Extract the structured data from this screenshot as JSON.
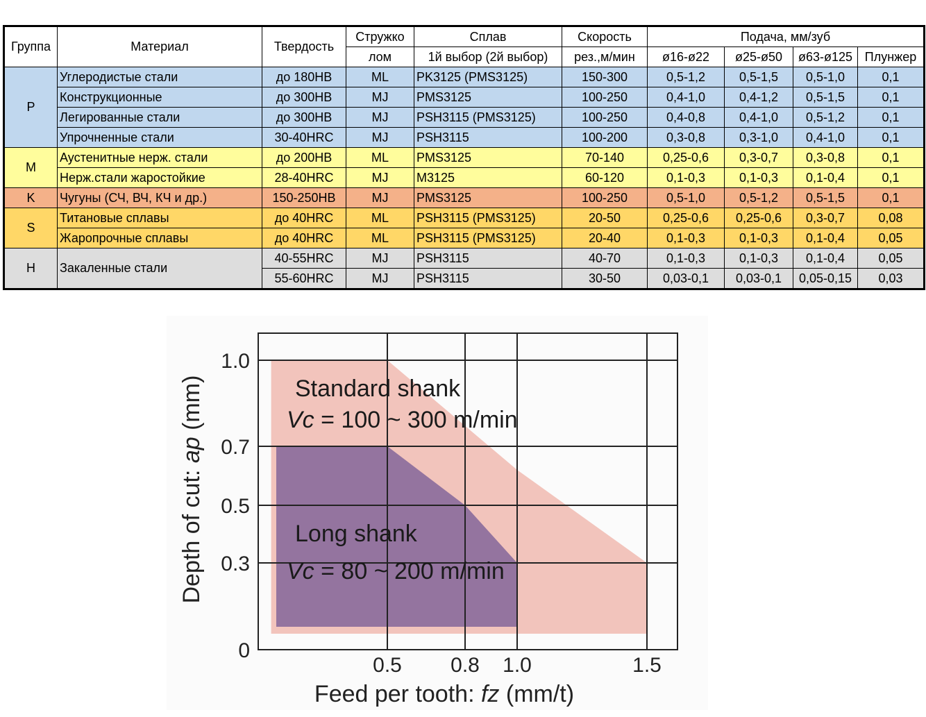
{
  "table": {
    "headers": {
      "group": "Группа",
      "material": "Материал",
      "hardness": "Твердость",
      "chip_l1": "Стружко",
      "chip_l2": "лом",
      "alloy_l1": "Сплав",
      "alloy_l2": "1й выбор (2й выбор)",
      "speed_l1": "Скорость",
      "speed_l2": "рез.,м/мин",
      "feed": "Подача, мм/зуб",
      "d1": "ø16-ø22",
      "d2": "ø25-ø50",
      "d3": "ø63-ø125",
      "d4": "Плунжер"
    },
    "groups": [
      {
        "name": "P",
        "rows": [
          {
            "material": "Углеродистые стали",
            "hardness": "до 180HB",
            "chip": "ML",
            "alloy": "PK3125 (PMS3125)",
            "speed": "150-300",
            "f1": "0,5-1,2",
            "f2": "0,5-1,5",
            "f3": "0,5-1,0",
            "f4": "0,1"
          },
          {
            "material": "Конструкционные",
            "hardness": "до 300HB",
            "chip": "MJ",
            "alloy": "PMS3125",
            "speed": "100-250",
            "f1": "0,4-1,0",
            "f2": "0,4-1,2",
            "f3": "0,5-1,5",
            "f4": "0,1"
          },
          {
            "material": "Легированные стали",
            "hardness": "до 300HB",
            "chip": "MJ",
            "alloy": "PSH3115 (PMS3125)",
            "speed": "100-250",
            "f1": "0,4-0,8",
            "f2": "0,4-1,0",
            "f3": "0,5-1,2",
            "f4": "0,1"
          },
          {
            "material": "Упрочненные стали",
            "hardness": "30-40HRC",
            "chip": "MJ",
            "alloy": "PSH3115",
            "speed": "100-200",
            "f1": "0,3-0,8",
            "f2": "0,3-1,0",
            "f3": "0,4-1,0",
            "f4": "0,1"
          }
        ]
      },
      {
        "name": "M",
        "rows": [
          {
            "material": "Аустенитные нерж. стали",
            "hardness": "до 200HB",
            "chip": "ML",
            "alloy": "PMS3125",
            "speed": "70-140",
            "f1": "0,25-0,6",
            "f2": "0,3-0,7",
            "f3": "0,3-0,8",
            "f4": "0,1"
          },
          {
            "material": "Нерж.стали жаростойкие",
            "hardness": "28-40HRC",
            "chip": "MJ",
            "alloy": "M3125",
            "speed": "60-120",
            "f1": "0,1-0,3",
            "f2": "0,1-0,3",
            "f3": "0,1-0,4",
            "f4": "0,1"
          }
        ]
      },
      {
        "name": "K",
        "rows": [
          {
            "material": "Чугуны (СЧ, ВЧ, КЧ и др.)",
            "hardness": "150-250HB",
            "chip": "MJ",
            "alloy": "PMS3125",
            "speed": "100-250",
            "f1": "0,5-1,0",
            "f2": "0,5-1,2",
            "f3": "0,5-1,5",
            "f4": "0,1"
          }
        ]
      },
      {
        "name": "S",
        "rows": [
          {
            "material": "Титановые сплавы",
            "hardness": "до 40HRC",
            "chip": "ML",
            "alloy": "PSH3115 (PMS3125)",
            "speed": "20-50",
            "f1": "0,25-0,6",
            "f2": "0,25-0,6",
            "f3": "0,3-0,7",
            "f4": "0,08"
          },
          {
            "material": "Жаропрочные сплавы",
            "hardness": "до 40HRC",
            "chip": "ML",
            "alloy": "PSH3115 (PMS3125)",
            "speed": "20-40",
            "f1": "0,1-0,3",
            "f2": "0,1-0,3",
            "f3": "0,1-0,4",
            "f4": "0,05"
          }
        ]
      },
      {
        "name": "H",
        "material_merged": "Закаленные стали",
        "rows": [
          {
            "hardness": "40-55HRC",
            "chip": "MJ",
            "alloy": "PSH3115",
            "speed": "40-70",
            "f1": "0,1-0,3",
            "f2": "0,1-0,3",
            "f3": "0,1-0,4",
            "f4": "0,05"
          },
          {
            "hardness": "55-60HRC",
            "chip": "MJ",
            "alloy": "PSH3115",
            "speed": "30-50",
            "f1": "0,03-0,1",
            "f2": "0,03-0,1",
            "f3": "0,05-0,15",
            "f4": "0,03"
          }
        ]
      }
    ],
    "colors": {
      "P": "#c0d7ee",
      "M": "#fffd9c",
      "K": "#f4b189",
      "S": "#ffd767",
      "H": "#dddddd"
    }
  },
  "chart_data": {
    "type": "area",
    "xlabel_prefix": "Feed per tooth: ",
    "xlabel_var": "fz",
    "xlabel_unit": " (mm/t)",
    "ylabel_prefix": "Depth of cut: ",
    "ylabel_var": "ap",
    "ylabel_unit": " (mm)",
    "x_ticks": [
      "0.5",
      "0.8",
      "1.0",
      "1.5"
    ],
    "y_ticks": [
      "0",
      "0.3",
      "0.5",
      "0.7",
      "1.0"
    ],
    "grid": true,
    "series": [
      {
        "name": "Standard shank",
        "subtitle_prefix": "Vc",
        "subtitle_rest": " = 100 ~ 300 m/min",
        "color": "#f2c4bc",
        "polygon": [
          [
            0.05,
            1.0
          ],
          [
            0.5,
            1.0
          ],
          [
            1.0,
            0.62
          ],
          [
            1.5,
            0.3
          ],
          [
            1.5,
            0.0
          ],
          [
            0.05,
            0.0
          ]
        ]
      },
      {
        "name": "Long shank",
        "subtitle_prefix": "Vc",
        "subtitle_rest": " = 80 ~ 200 m/min",
        "color": "#8c6c9c",
        "polygon": [
          [
            0.07,
            0.7
          ],
          [
            0.5,
            0.7
          ],
          [
            0.8,
            0.5
          ],
          [
            1.0,
            0.3
          ],
          [
            1.0,
            0.02
          ],
          [
            0.07,
            0.02
          ]
        ]
      }
    ]
  }
}
